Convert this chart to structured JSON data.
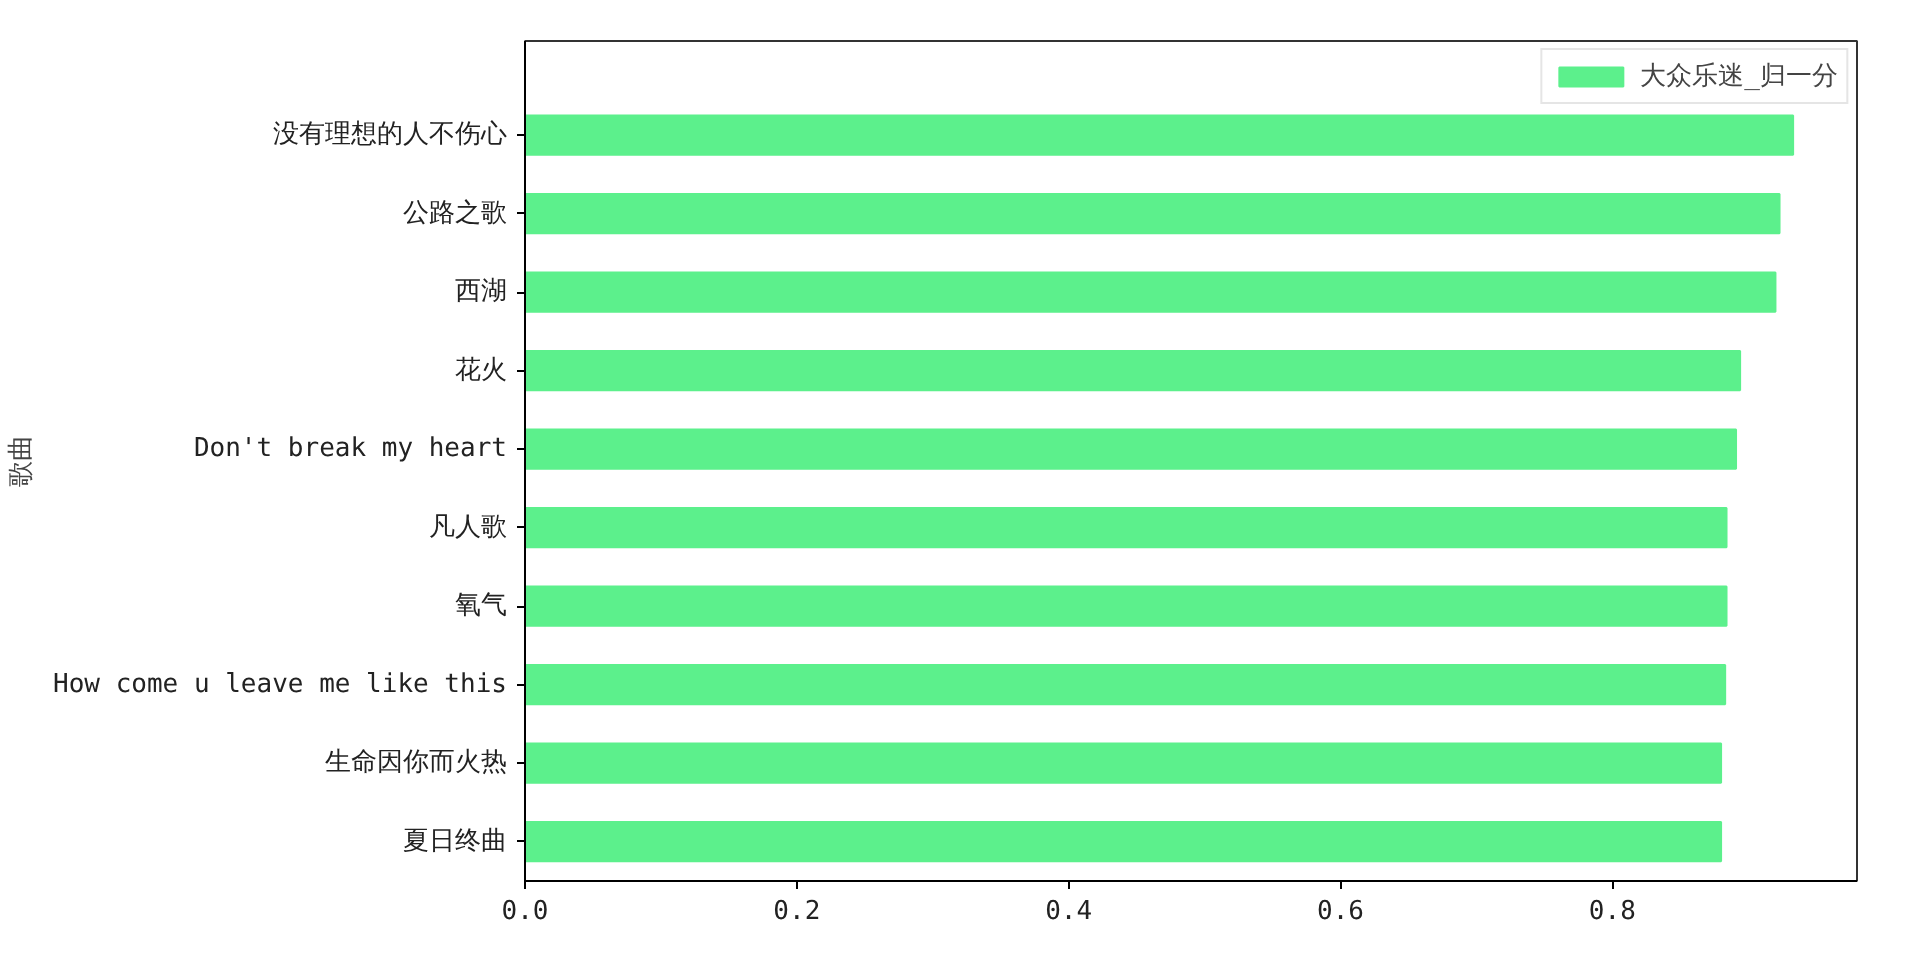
{
  "chart_data": {
    "type": "bar",
    "orientation": "horizontal",
    "ylabel": "歌曲",
    "categories": [
      "没有理想的人不伤心",
      "公路之歌",
      "西湖",
      "花火",
      "Don't break my heart",
      "凡人歌",
      "氧气",
      "How come u leave me like this",
      "生命因你而火热",
      "夏日终曲"
    ],
    "series": [
      {
        "name": "大众乐迷_归一分",
        "color": "#5cf08c",
        "values": [
          0.933,
          0.923,
          0.92,
          0.894,
          0.891,
          0.884,
          0.884,
          0.883,
          0.88,
          0.88
        ]
      }
    ],
    "xlim": [
      0,
      0.98
    ],
    "xticks": [
      {
        "value": 0,
        "label": "0.0"
      },
      {
        "value": 0.2,
        "label": "0.2"
      },
      {
        "value": 0.4,
        "label": "0.4"
      },
      {
        "value": 0.6,
        "label": "0.6"
      },
      {
        "value": 0.8,
        "label": "0.8"
      }
    ],
    "grid": false,
    "legend": "top right"
  }
}
